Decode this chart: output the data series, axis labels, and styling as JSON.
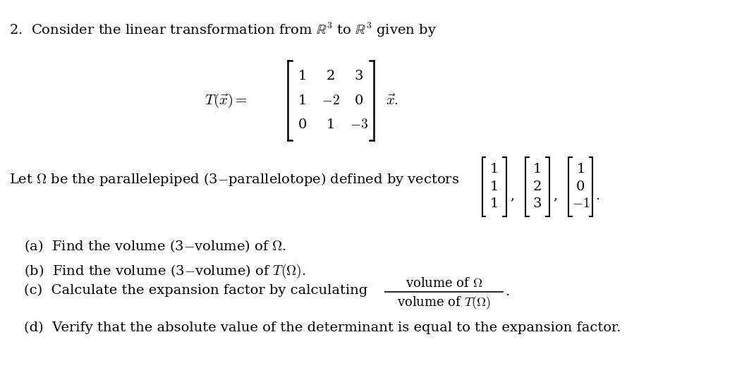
{
  "bg_color": "#ffffff",
  "text_color": "#000000",
  "figsize": [
    10.62,
    5.22
  ],
  "dpi": 100,
  "font_size": 14,
  "line1": "2.  Consider the linear transformation from $\\mathbb{R}^3$ to $\\mathbb{R}^3$ given by",
  "matrix_label": "$T(\\vec{x}) = $",
  "matrix_rows": [
    [
      "1",
      "2",
      "3"
    ],
    [
      "1",
      "$-2$",
      "0"
    ],
    [
      "0",
      "1",
      "$-3$"
    ]
  ],
  "matrix_vecx": "$\\vec{x}.$",
  "vec_text": "Let $\\Omega$ be the parallelepiped (3$-$parallelotope) defined by vectors",
  "vec1": [
    "1",
    "1",
    "1"
  ],
  "vec2": [
    "1",
    "2",
    "3"
  ],
  "vec3": [
    "1",
    "0",
    "$-1$"
  ],
  "part_a": "(a)  Find the volume (3$-$volume) of $\\Omega$.",
  "part_b": "(b)  Find the volume (3$-$volume) of $T(\\Omega)$.",
  "part_c_text": "(c)  Calculate the expansion factor by calculating",
  "frac_num": "volume of $\\Omega$",
  "frac_den": "volume of $T(\\Omega)$",
  "part_d": "(d)  Verify that the absolute value of the determinant is equal to the expansion factor."
}
